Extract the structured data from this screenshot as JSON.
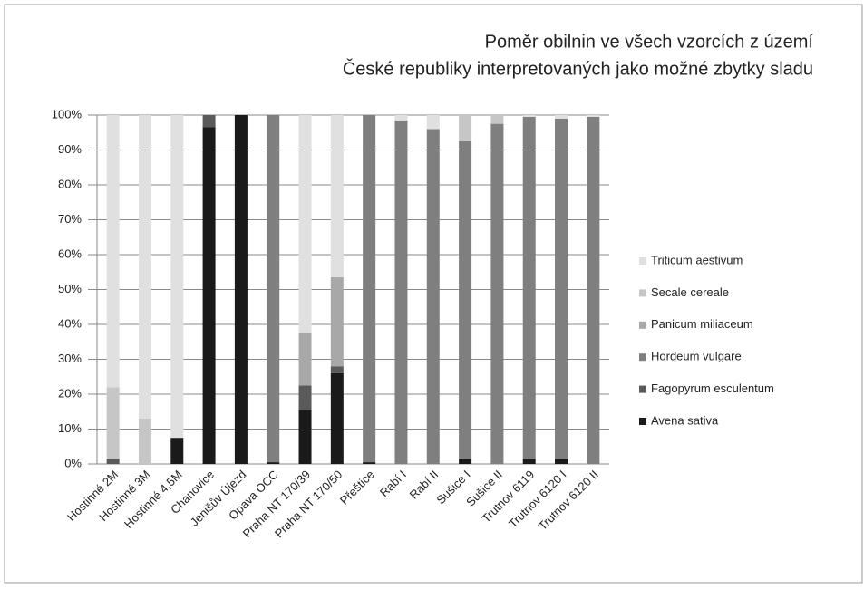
{
  "chart_data": {
    "type": "bar",
    "stacked": true,
    "title_lines": [
      "Poměr obilnin ve všech vzorcích z území",
      "České republiky interpretovaných jako možné zbytky sladu"
    ],
    "categories": [
      "Hostinné 2M",
      "Hostinné 3M",
      "Hostinné 4,5M",
      "Chanovice",
      "Jenišův Újezd",
      "Opava OCC",
      "Praha NT 170/39",
      "Praha NT 170/50",
      "Přeštice",
      "Rabí I",
      "Rabí II",
      "Sušice I",
      "Sušice II",
      "Trutnov 6119",
      "Trutnov 6120 I",
      "Trutnov 6120 II"
    ],
    "series": [
      {
        "name": "Avena sativa",
        "color": "#1a1a1a",
        "values": [
          0,
          0,
          7.5,
          96.5,
          100,
          0.5,
          15.5,
          26,
          0.5,
          0,
          0,
          1.5,
          0,
          1.5,
          1.5,
          0
        ]
      },
      {
        "name": "Fagopyrum esculentum",
        "color": "#5a5a5a",
        "values": [
          1.5,
          0,
          0,
          3.5,
          0,
          0,
          7,
          2,
          0,
          0,
          0,
          0,
          0,
          0,
          0,
          0
        ]
      },
      {
        "name": "Hordeum vulgare",
        "color": "#7f7f7f",
        "values": [
          0,
          0,
          0,
          0,
          0,
          99.5,
          0,
          0,
          99.5,
          98.5,
          96,
          91,
          97.5,
          98,
          97.5,
          99.5
        ]
      },
      {
        "name": "Panicum miliaceum",
        "color": "#a8a8a8",
        "values": [
          0,
          0,
          0,
          0,
          0,
          0,
          15,
          25.5,
          0,
          0,
          0,
          0,
          0,
          0,
          0,
          0
        ]
      },
      {
        "name": "Secale cereale",
        "color": "#c6c6c6",
        "values": [
          20.5,
          13,
          0,
          0,
          0,
          0,
          0,
          0,
          0,
          0,
          0,
          7.5,
          2.5,
          0,
          0,
          0
        ]
      },
      {
        "name": "Triticum aestivum",
        "color": "#e0e0e0",
        "values": [
          78,
          87,
          92.5,
          0,
          0,
          0,
          62.5,
          46.5,
          0,
          1.5,
          4,
          0,
          0,
          0.5,
          1,
          0.5
        ]
      }
    ],
    "ylim": [
      0,
      100
    ],
    "yticks": [
      {
        "value": 0,
        "label": "0%"
      },
      {
        "value": 10,
        "label": "10%"
      },
      {
        "value": 20,
        "label": "20%"
      },
      {
        "value": 30,
        "label": "30%"
      },
      {
        "value": 40,
        "label": "40%"
      },
      {
        "value": 50,
        "label": "50%"
      },
      {
        "value": 60,
        "label": "60%"
      },
      {
        "value": 70,
        "label": "70%"
      },
      {
        "value": 80,
        "label": "80%"
      },
      {
        "value": 90,
        "label": "90%"
      },
      {
        "value": 100,
        "label": "100%"
      }
    ],
    "grid": true,
    "legend": "right"
  }
}
